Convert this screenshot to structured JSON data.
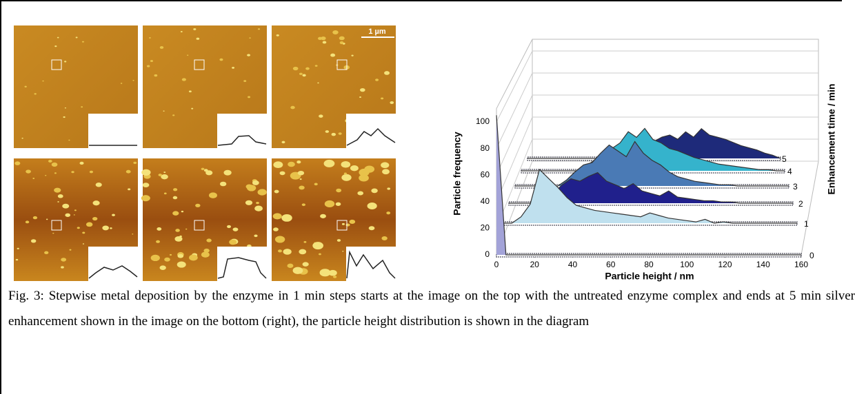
{
  "scale_bar": "1 µm",
  "chart_data": {
    "type": "area",
    "x_label": "Particle height / nm",
    "y_label": "Particle frequency",
    "z_label": "Enhancement time / min",
    "x": [
      0,
      5,
      10,
      15,
      20,
      25,
      30,
      35,
      40,
      45,
      50,
      55,
      60,
      65,
      70,
      75,
      80,
      85,
      90,
      95,
      100,
      105,
      110,
      115,
      120,
      125,
      130,
      135,
      140,
      145,
      150,
      155,
      160
    ],
    "xlim": [
      0,
      160
    ],
    "xticks": [
      0,
      20,
      40,
      60,
      80,
      100,
      120,
      140,
      160
    ],
    "ylim": [
      0,
      110
    ],
    "yticks": [
      0,
      20,
      40,
      60,
      80,
      100
    ],
    "series": [
      {
        "name": "0",
        "color": "#a3a3d8",
        "values": [
          105,
          0,
          0,
          0,
          0,
          0,
          0,
          0,
          0,
          0,
          0,
          0,
          0,
          0,
          0,
          0,
          0,
          0,
          0,
          0,
          0,
          0,
          0,
          0,
          0,
          0,
          0,
          0,
          0,
          0,
          0,
          0,
          0
        ]
      },
      {
        "name": "1",
        "color": "#bfe0ee",
        "values": [
          0,
          0,
          5,
          15,
          42,
          35,
          28,
          20,
          14,
          12,
          10,
          9,
          8,
          7,
          6,
          5,
          8,
          6,
          4,
          3,
          2,
          1,
          3,
          0,
          1,
          0,
          0,
          0,
          0,
          0,
          0,
          0,
          0
        ]
      },
      {
        "name": "2",
        "color": "#20208c",
        "values": [
          0,
          0,
          0,
          0,
          5,
          8,
          15,
          20,
          18,
          22,
          25,
          18,
          15,
          12,
          16,
          10,
          8,
          6,
          10,
          5,
          4,
          3,
          2,
          2,
          1,
          1,
          0,
          0,
          0,
          0,
          0,
          0,
          0
        ]
      },
      {
        "name": "3",
        "color": "#4a7ab5",
        "values": [
          0,
          0,
          0,
          0,
          0,
          0,
          5,
          12,
          18,
          20,
          28,
          35,
          30,
          25,
          38,
          28,
          22,
          18,
          12,
          8,
          6,
          4,
          3,
          2,
          1,
          1,
          0,
          0,
          0,
          0,
          0,
          0,
          0
        ]
      },
      {
        "name": "4",
        "color": "#35b3cc",
        "values": [
          0,
          0,
          0,
          0,
          0,
          0,
          0,
          0,
          5,
          10,
          15,
          20,
          25,
          35,
          30,
          38,
          28,
          25,
          20,
          18,
          15,
          12,
          10,
          8,
          6,
          5,
          4,
          3,
          2,
          1,
          1,
          0,
          0
        ]
      },
      {
        "name": "5",
        "color": "#1e2a7a",
        "values": [
          0,
          0,
          0,
          0,
          0,
          0,
          0,
          0,
          0,
          0,
          0,
          5,
          8,
          10,
          14,
          18,
          16,
          20,
          22,
          18,
          25,
          20,
          28,
          22,
          20,
          18,
          15,
          12,
          10,
          8,
          5,
          3,
          0
        ]
      }
    ]
  },
  "caption": "Fig. 3: Stepwise metal deposition by the enzyme in 1 min steps starts at the image on the top with the untreated enzyme complex and ends at 5 min silver enhancement shown in the image on the bottom (right), the particle height distribution is shown in the diagram"
}
